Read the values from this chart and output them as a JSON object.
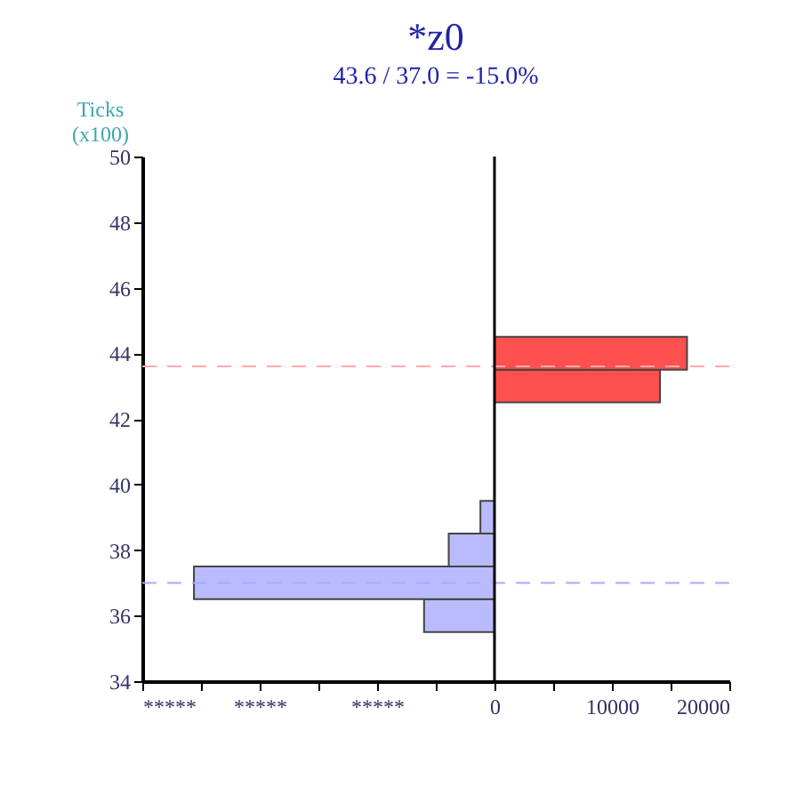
{
  "chart_data": {
    "type": "bar",
    "orientation": "horizontal",
    "title": "*z0",
    "subtitle": "43.6 / 37.0 = -15.0%",
    "ylabel": "Ticks (x100)",
    "series": [
      {
        "color": "#ff5050",
        "x": [
          43,
          44
        ],
        "values": [
          14100,
          16400
        ]
      },
      {
        "color": "#babaff",
        "x": [
          36,
          37,
          38,
          39
        ],
        "values": [
          -6000,
          -25600,
          -3900,
          -1200
        ]
      }
    ],
    "ylim": [
      34,
      50
    ],
    "yticks": [
      34,
      36,
      38,
      40,
      42,
      44,
      46,
      48,
      50
    ],
    "xlim": [
      -30000,
      20000
    ],
    "xticks": [
      {
        "value": -30000,
        "label": "*****"
      },
      {
        "value": -25000,
        "label": null
      },
      {
        "value": -20000,
        "label": "*****"
      },
      {
        "value": -15000,
        "label": null
      },
      {
        "value": -10000,
        "label": "*****"
      },
      {
        "value": -5000,
        "label": null
      },
      0,
      {
        "value": 5000,
        "label": null
      },
      10000,
      {
        "value": 15000,
        "label": null
      },
      20000
    ],
    "ref_lines": [
      {
        "axis": "y",
        "value": 43.6,
        "color": "#ffaaaa",
        "line_style": "dashed"
      },
      {
        "axis": "y",
        "value": 37.0,
        "color": "#aaaaff",
        "line_style": "dashed"
      },
      {
        "axis": "x",
        "value": 0,
        "color": "#000000",
        "line_style": "solid"
      }
    ],
    "grid": false
  }
}
